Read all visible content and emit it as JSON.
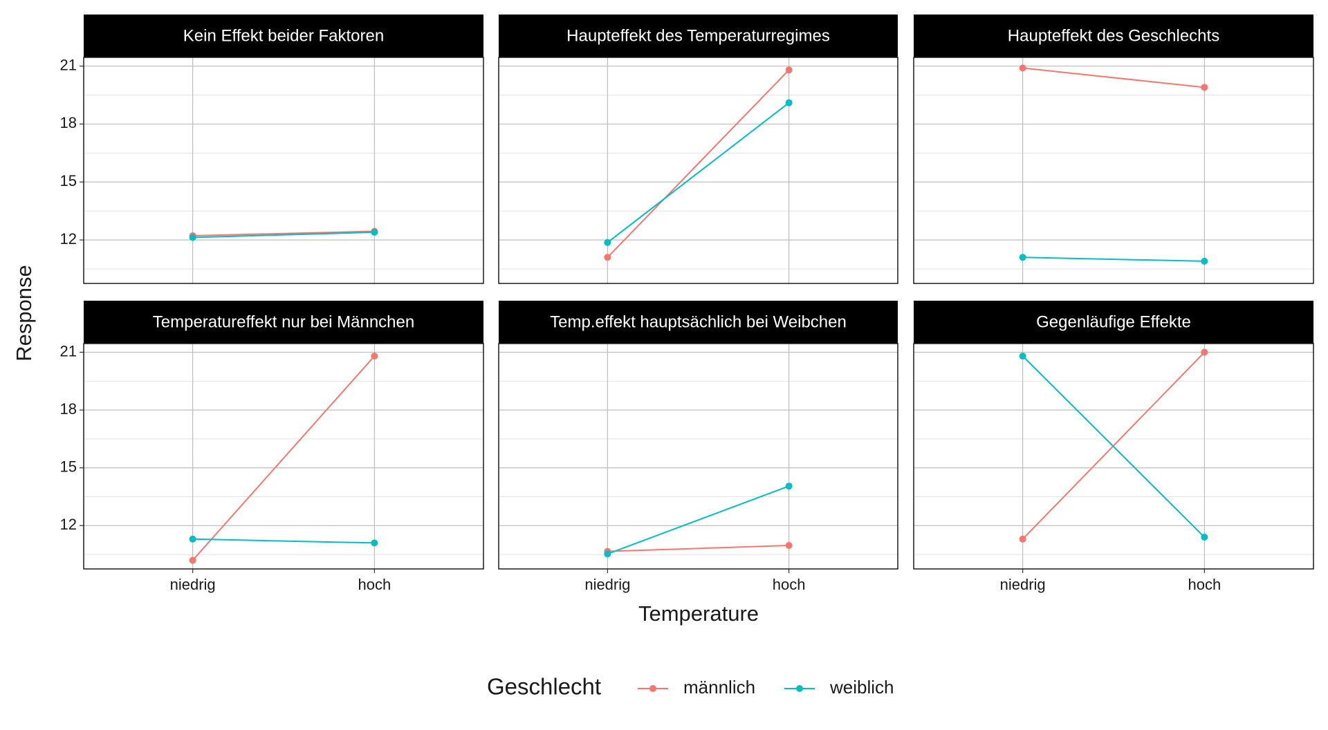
{
  "chart_data": {
    "type": "line",
    "x_label": "Temperature",
    "y_label": "Response",
    "legend_title": "Geschlecht",
    "legend_position": "bottom",
    "categories": [
      "niedrig",
      "hoch"
    ],
    "ylim": [
      9.75,
      21.45
    ],
    "yticks": [
      12,
      15,
      18,
      21
    ],
    "minor_yticks": [
      10.5,
      13.5,
      16.5,
      19.5
    ],
    "grid": true,
    "panels": [
      {
        "title": "Kein Effekt beider Faktoren",
        "series": [
          {
            "name": "männlich",
            "color": "#F8766D",
            "values": [
              12.22,
              12.45
            ]
          },
          {
            "name": "weiblich",
            "color": "#00BFC4",
            "values": [
              12.13,
              12.4
            ]
          }
        ]
      },
      {
        "title": "Haupteffekt des Temperaturregimes",
        "series": [
          {
            "name": "männlich",
            "color": "#F8766D",
            "values": [
              11.1,
              20.8
            ]
          },
          {
            "name": "weiblich",
            "color": "#00BFC4",
            "values": [
              11.87,
              19.1
            ]
          }
        ]
      },
      {
        "title": "Haupteffekt des Geschlechts",
        "series": [
          {
            "name": "männlich",
            "color": "#F8766D",
            "values": [
              20.9,
              19.9
            ]
          },
          {
            "name": "weiblich",
            "color": "#00BFC4",
            "values": [
              11.1,
              10.9
            ]
          }
        ]
      },
      {
        "title": "Temperatureffekt nur bei Männchen",
        "series": [
          {
            "name": "männlich",
            "color": "#F8766D",
            "values": [
              10.2,
              20.8
            ]
          },
          {
            "name": "weiblich",
            "color": "#00BFC4",
            "values": [
              11.3,
              11.1
            ]
          }
        ]
      },
      {
        "title": "Temp.effekt hauptsächlich bei Weibchen",
        "series": [
          {
            "name": "männlich",
            "color": "#F8766D",
            "values": [
              10.66,
              10.97
            ]
          },
          {
            "name": "weiblich",
            "color": "#00BFC4",
            "values": [
              10.53,
              14.05
            ]
          }
        ]
      },
      {
        "title": "Gegenläufige Effekte",
        "series": [
          {
            "name": "männlich",
            "color": "#F8766D",
            "values": [
              11.3,
              21.0
            ]
          },
          {
            "name": "weiblich",
            "color": "#00BFC4",
            "values": [
              20.8,
              11.4
            ]
          }
        ]
      }
    ]
  }
}
